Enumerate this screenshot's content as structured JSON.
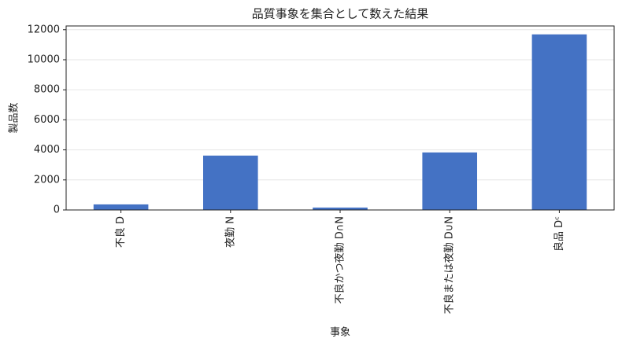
{
  "chart_data": {
    "type": "bar",
    "title": "品質事象を集合として数えた結果",
    "x_label": "事象",
    "y_label": "製品数",
    "categories": [
      "不良 D",
      "夜勤 N",
      "不良かつ夜勤 D∩N",
      "不良または夜勤 D∪N",
      "良品 Dᶜ"
    ],
    "values": [
      370,
      3620,
      160,
      3830,
      11690
    ],
    "color": "#4472c4",
    "ylim": [
      0,
      12250
    ],
    "yticks": [
      0,
      2000,
      4000,
      6000,
      8000,
      10000,
      12000
    ],
    "grid": true
  }
}
